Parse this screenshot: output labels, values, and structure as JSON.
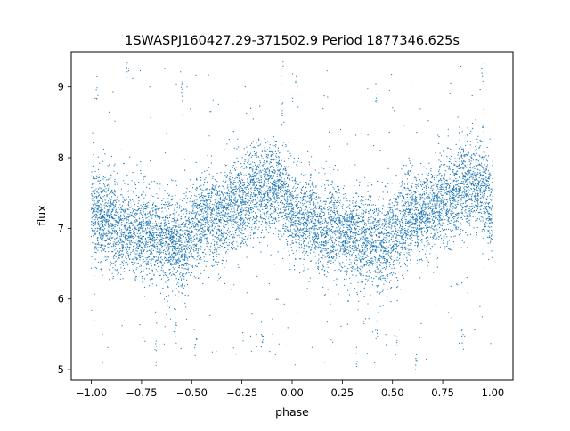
{
  "chart_data": {
    "type": "scatter",
    "title": "1SWASPJ160427.29-371502.9 Period 1877346.625s",
    "xlabel": "phase",
    "ylabel": "flux",
    "xlim": [
      -1.1,
      1.1
    ],
    "ylim": [
      4.85,
      9.5
    ],
    "xticks": [
      -1.0,
      -0.75,
      -0.5,
      -0.25,
      0.0,
      0.25,
      0.5,
      0.75,
      1.0
    ],
    "xtick_labels": [
      "−1.00",
      "−0.75",
      "−0.50",
      "−0.25",
      "0.00",
      "0.25",
      "0.50",
      "0.75",
      "1.00"
    ],
    "yticks": [
      5,
      6,
      7,
      8,
      9
    ],
    "ytick_labels": [
      "5",
      "6",
      "7",
      "8",
      "9"
    ],
    "grid": false,
    "marker_color": "#1f77b4",
    "phase_range": [
      -1.0,
      1.0
    ],
    "baseline_flux": 7.15,
    "series": [
      {
        "values": [
          [
            -1.0,
            7.25
          ],
          [
            -0.95,
            7.1
          ],
          [
            -0.9,
            7.15
          ],
          [
            -0.85,
            6.9
          ],
          [
            -0.8,
            7.0
          ],
          [
            -0.75,
            6.95
          ],
          [
            -0.7,
            6.9
          ],
          [
            -0.65,
            6.85
          ],
          [
            -0.6,
            6.85
          ],
          [
            -0.55,
            6.75
          ],
          [
            -0.5,
            6.95
          ],
          [
            -0.45,
            7.05
          ],
          [
            -0.4,
            7.2
          ],
          [
            -0.35,
            7.15
          ],
          [
            -0.3,
            7.3
          ],
          [
            -0.25,
            7.35
          ],
          [
            -0.2,
            7.5
          ],
          [
            -0.15,
            7.55
          ],
          [
            -0.1,
            7.6
          ],
          [
            -0.05,
            7.55
          ],
          [
            0.0,
            7.25
          ],
          [
            0.05,
            7.1
          ],
          [
            0.1,
            7.15
          ],
          [
            0.15,
            6.9
          ],
          [
            0.2,
            7.0
          ],
          [
            0.25,
            6.95
          ],
          [
            0.3,
            6.9
          ],
          [
            0.35,
            6.85
          ],
          [
            0.4,
            6.85
          ],
          [
            0.45,
            6.75
          ],
          [
            0.5,
            6.95
          ],
          [
            0.55,
            7.05
          ],
          [
            0.6,
            7.2
          ],
          [
            0.65,
            7.15
          ],
          [
            0.7,
            7.3
          ],
          [
            0.75,
            7.35
          ],
          [
            0.8,
            7.5
          ],
          [
            0.85,
            7.55
          ],
          [
            0.9,
            7.6
          ],
          [
            0.95,
            7.55
          ],
          [
            1.0,
            7.25
          ]
        ]
      }
    ],
    "outliers": [
      [
        -0.05,
        9.2
      ],
      [
        -0.05,
        8.6
      ],
      [
        0.95,
        9.2
      ],
      [
        0.95,
        8.6
      ],
      [
        -0.97,
        9.0
      ],
      [
        -0.82,
        9.25
      ],
      [
        -0.55,
        9.1
      ],
      [
        0.42,
        8.9
      ],
      [
        0.02,
        9.0
      ],
      [
        -0.68,
        5.2
      ],
      [
        -0.58,
        5.6
      ],
      [
        -0.48,
        5.3
      ],
      [
        0.32,
        5.2
      ],
      [
        0.42,
        5.6
      ],
      [
        0.52,
        5.3
      ],
      [
        0.85,
        5.4
      ],
      [
        -0.15,
        5.35
      ],
      [
        0.62,
        5.15
      ]
    ]
  }
}
